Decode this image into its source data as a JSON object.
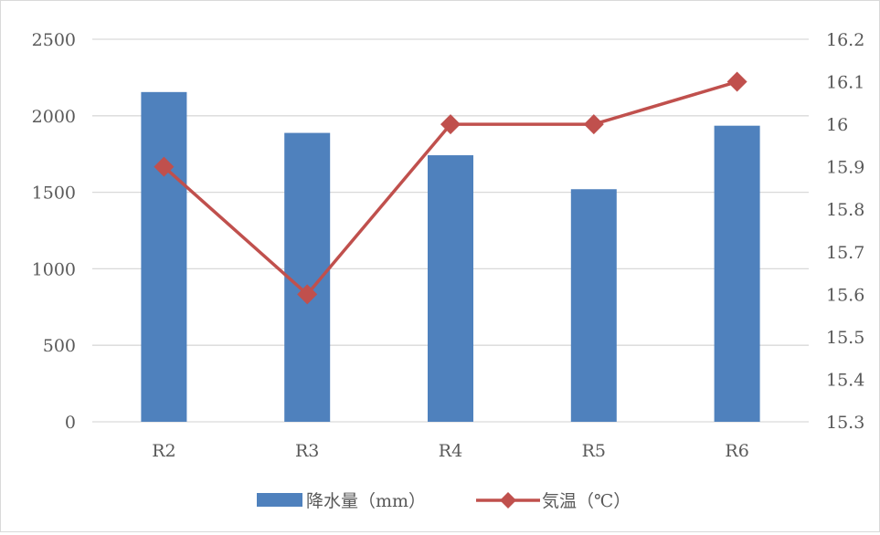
{
  "chart_data": {
    "type": "bar",
    "categories": [
      "R2",
      "R3",
      "R4",
      "R5",
      "R6"
    ],
    "series": [
      {
        "name": "降水量（mm）",
        "type": "bar",
        "axis": "left",
        "color": "#4f81bd",
        "values": [
          2155,
          1888,
          1742,
          1520,
          1935
        ]
      },
      {
        "name": "気温（℃）",
        "type": "line",
        "axis": "right",
        "color": "#c0504d",
        "marker": "diamond",
        "values": [
          15.9,
          15.6,
          16.0,
          16.0,
          16.1
        ]
      }
    ],
    "y_left": {
      "min": 0,
      "max": 2500,
      "ticks": [
        "0",
        "500",
        "1000",
        "1500",
        "2000",
        "2500"
      ],
      "tick_values": [
        0,
        500,
        1000,
        1500,
        2000,
        2500
      ]
    },
    "y_right": {
      "min": 15.3,
      "max": 16.2,
      "ticks": [
        "15.3",
        "15.4",
        "15.5",
        "15.6",
        "15.7",
        "15.8",
        "15.9",
        "16",
        "16.1",
        "16.2"
      ],
      "tick_values": [
        15.3,
        15.4,
        15.5,
        15.6,
        15.7,
        15.8,
        15.9,
        16.0,
        16.1,
        16.2
      ]
    },
    "grid": true,
    "gridline_color": "#d9d9d9",
    "legend_position": "bottom"
  }
}
